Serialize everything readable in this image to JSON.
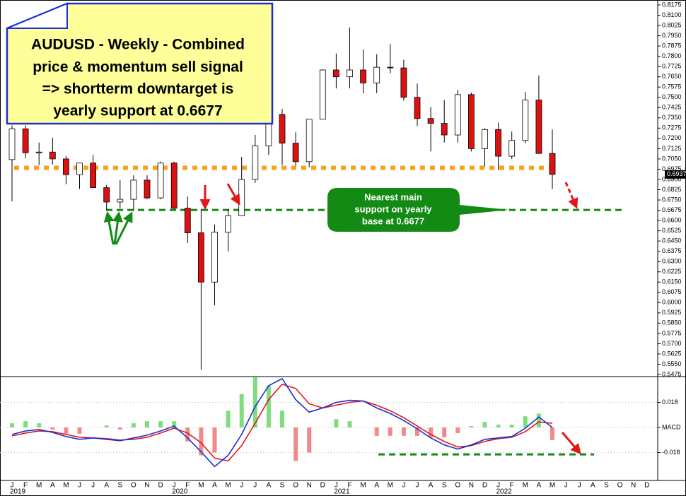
{
  "chart_data": [
    {
      "type": "candlestick",
      "title": [
        "AUDUSD - Weekly - Combined",
        "price & momentum sell signal",
        "=> shortterm downtarget is",
        "yearly support at 0.6677"
      ],
      "annotation": [
        "Nearest main",
        "support on yearly",
        "base at 0.6677"
      ],
      "categories": [
        "J",
        "F",
        "M",
        "A",
        "M",
        "J",
        "J",
        "A",
        "S",
        "O",
        "N",
        "D",
        "J",
        "F",
        "M",
        "A",
        "M",
        "J",
        "J",
        "A",
        "S",
        "O",
        "N",
        "D",
        "J",
        "F",
        "M",
        "A",
        "M",
        "J",
        "J",
        "A",
        "S",
        "O",
        "N",
        "D",
        "J",
        "F",
        "M",
        "A",
        "M",
        "J",
        "J",
        "A",
        "S",
        "O",
        "N",
        "D"
      ],
      "years": [
        "2019",
        "2020",
        "2021",
        "2022"
      ],
      "open": [
        0.7045,
        0.727,
        0.7095,
        0.71,
        0.705,
        0.6935,
        0.702,
        0.684,
        0.6735,
        0.6755,
        0.6895,
        0.6765,
        0.702,
        0.669,
        0.651,
        0.615,
        0.6515,
        0.6635,
        0.69,
        0.7145,
        0.7375,
        0.7165,
        0.703,
        0.734,
        0.77,
        0.765,
        0.77,
        0.7605,
        0.772,
        0.7715,
        0.75,
        0.7345,
        0.731,
        0.7225,
        0.752,
        0.7125,
        0.7265,
        0.707,
        0.7185,
        0.748,
        0.709,
        null,
        null,
        null,
        null,
        null,
        null,
        null
      ],
      "high": [
        0.7295,
        0.7295,
        0.717,
        0.7205,
        0.707,
        0.702,
        0.708,
        0.686,
        0.6895,
        0.693,
        0.693,
        0.703,
        0.703,
        0.6775,
        0.6685,
        0.657,
        0.6685,
        0.7065,
        0.7225,
        0.7415,
        0.7415,
        0.7245,
        0.734,
        0.7705,
        0.782,
        0.801,
        0.785,
        0.7815,
        0.789,
        0.7775,
        0.76,
        0.743,
        0.748,
        0.7555,
        0.7535,
        0.7275,
        0.7315,
        0.725,
        0.754,
        0.766,
        0.7265,
        null,
        null,
        null,
        null,
        null,
        null,
        null
      ],
      "low": [
        0.674,
        0.7055,
        0.7005,
        0.701,
        0.6865,
        0.683,
        0.6865,
        0.6675,
        0.669,
        0.667,
        0.6755,
        0.6755,
        0.6685,
        0.6435,
        0.551,
        0.598,
        0.6375,
        0.6635,
        0.6875,
        0.708,
        0.7005,
        0.7,
        0.699,
        0.734,
        0.7565,
        0.7565,
        0.753,
        0.753,
        0.7675,
        0.7475,
        0.729,
        0.7105,
        0.717,
        0.717,
        0.7105,
        0.6995,
        0.697,
        0.705,
        0.7165,
        0.709,
        0.683,
        null,
        null,
        null,
        null,
        null,
        null,
        null
      ],
      "close": [
        0.727,
        0.7095,
        0.71,
        0.705,
        0.6935,
        0.702,
        0.684,
        0.6735,
        0.6755,
        0.6895,
        0.6765,
        0.702,
        0.669,
        0.651,
        0.615,
        0.6515,
        0.6635,
        0.69,
        0.7145,
        0.7375,
        0.7165,
        0.703,
        0.734,
        0.77,
        0.765,
        0.77,
        0.7605,
        0.772,
        0.7715,
        0.75,
        0.7345,
        0.731,
        0.7225,
        0.752,
        0.7125,
        0.7265,
        0.707,
        0.7185,
        0.748,
        0.709,
        0.6937,
        null,
        null,
        null,
        null,
        null,
        null,
        null
      ],
      "up_color": "#ffffff",
      "down_color": "#dd1111",
      "levels": [
        {
          "value": 0.6985,
          "color": "#f7a21b"
        },
        {
          "value": 0.6677,
          "color": "#138a13"
        }
      ],
      "ylim": [
        0.5475,
        0.8175
      ],
      "yticks": [
        0.8175,
        {
          "value": 0.81,
          "label": "0.8100"
        },
        0.8025,
        {
          "value": 0.795,
          "label": "0.7950"
        },
        0.7875,
        {
          "value": 0.78,
          "label": "0.7800"
        },
        0.7725,
        {
          "value": 0.765,
          "label": "0.7650"
        },
        0.7575,
        {
          "value": 0.75,
          "label": "0.7500"
        },
        0.7425,
        {
          "value": 0.735,
          "label": "0.7350"
        },
        0.7275,
        {
          "value": 0.72,
          "label": "0.7200"
        },
        0.7125,
        {
          "value": 0.705,
          "label": "0.7050"
        },
        0.6975,
        {
          "value": 0.69,
          "label": "0.6900"
        },
        0.6825,
        {
          "value": 0.675,
          "label": "0.6750"
        },
        0.6675,
        {
          "value": 0.66,
          "label": "0.6600"
        },
        0.6525,
        {
          "value": 0.645,
          "label": "0.6450"
        },
        0.6375,
        {
          "value": 0.63,
          "label": "0.6300"
        },
        0.6225,
        {
          "value": 0.615,
          "label": "0.6150"
        },
        0.6075,
        {
          "value": 0.6,
          "label": "0.6000"
        },
        0.5925,
        {
          "value": 0.585,
          "label": "0.5850"
        },
        0.5775,
        {
          "value": 0.57,
          "label": "0.5700"
        },
        0.5625,
        {
          "value": 0.555,
          "label": "0.5550"
        },
        0.5475
      ]
    },
    {
      "type": "macd",
      "series": [
        {
          "name": "MACD",
          "color": "#1a2fd6",
          "values": [
            -0.005,
            -0.0025,
            -0.0015,
            -0.0035,
            -0.0065,
            -0.0085,
            -0.0075,
            -0.0085,
            -0.0095,
            -0.0075,
            -0.0055,
            -0.0025,
            0.001,
            -0.0075,
            -0.0175,
            -0.028,
            -0.02,
            -0.005,
            0.015,
            0.03,
            0.035,
            0.02,
            0.011,
            0.014,
            0.018,
            0.0195,
            0.019,
            0.014,
            0.01,
            0.005,
            -0.001,
            -0.0075,
            -0.0125,
            -0.0155,
            -0.0125,
            -0.0085,
            -0.0075,
            -0.0065,
            -0.0005,
            0.0075,
            0,
            null,
            null,
            null,
            null,
            null,
            null,
            null
          ]
        },
        {
          "name": "Signal",
          "color": "#e01818",
          "values": [
            -0.006,
            -0.004,
            -0.0025,
            -0.003,
            -0.005,
            -0.007,
            -0.0075,
            -0.008,
            -0.009,
            -0.0085,
            -0.007,
            -0.004,
            -0.0005,
            -0.004,
            -0.011,
            -0.022,
            -0.024,
            -0.013,
            0.003,
            0.02,
            0.031,
            0.028,
            0.017,
            0.014,
            0.016,
            0.018,
            0.019,
            0.016,
            0.012,
            0.007,
            0.001,
            -0.005,
            -0.01,
            -0.014,
            -0.013,
            -0.01,
            -0.008,
            -0.007,
            -0.003,
            0.004,
            0.003,
            null,
            null,
            null,
            null,
            null,
            null,
            null
          ]
        }
      ],
      "histogram": [
        0.003,
        0.0045,
        0.003,
        -0.0015,
        -0.0045,
        -0.0045,
        0,
        0.0015,
        -0.0015,
        0.003,
        0.0045,
        0.0045,
        0.0045,
        -0.01,
        -0.02,
        -0.018,
        0.012,
        0.024,
        0.036,
        0.03,
        0.012,
        -0.024,
        -0.018,
        0,
        0.006,
        0.0045,
        0,
        -0.006,
        -0.006,
        -0.006,
        -0.006,
        -0.007,
        -0.007,
        -0.004,
        0.001,
        0.004,
        0.002,
        0.002,
        0.008,
        0.01,
        -0.009,
        null,
        null,
        null,
        null,
        null,
        null,
        null
      ],
      "positive_color": "#7fdc7f",
      "negative_color": "#f08a8a",
      "levels": [
        {
          "value": -0.0193,
          "color": "#138a13"
        }
      ],
      "ylim": [
        -0.038,
        0.0365
      ],
      "yticks": [
        0.018,
        {
          "value": 0,
          "label": "MACD"
        },
        -0.018
      ],
      "grid": true
    }
  ]
}
